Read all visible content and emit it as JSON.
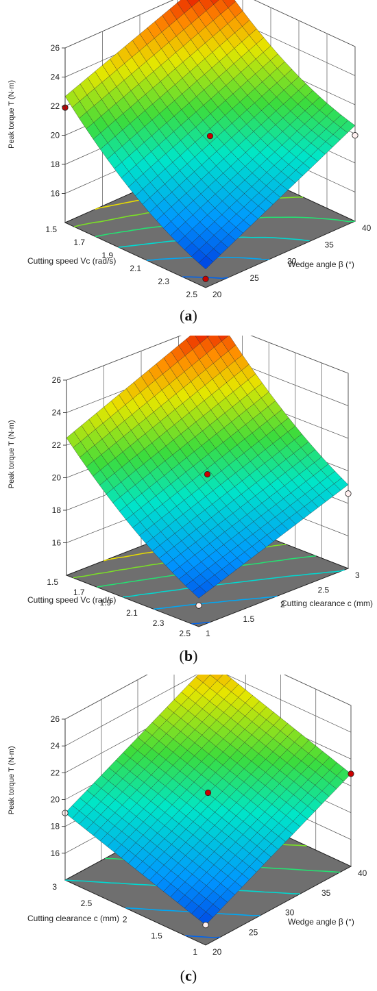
{
  "captions": [
    "(a)",
    "(b)",
    "(c)"
  ],
  "chart_data": [
    {
      "type": "surface3d",
      "zlabel": "Peak torque T (N·m)",
      "left_axis_label": "Cutting speed Vc (rad/s)",
      "right_axis_label": "Wedge angle β (°)",
      "left_ticks": [
        "1.5",
        "1.7",
        "1.9",
        "2.1",
        "2.3",
        "2.5"
      ],
      "right_ticks": [
        "20",
        "25",
        "30",
        "35",
        "40"
      ],
      "z_ticks": [
        "16",
        "18",
        "20",
        "22",
        "24",
        "26"
      ],
      "zlim": [
        14,
        26
      ],
      "corner_values": {
        "left_min_right_min": 22.0,
        "left_min_right_max": 26.0,
        "left_max_right_min": 14.6,
        "left_max_right_max": 19.9
      },
      "curvature": 0.9,
      "design_points": [
        {
          "left": 1.5,
          "right": 20,
          "z": 21.9,
          "color": "red"
        },
        {
          "left": 1.5,
          "right": 40,
          "z": 26.0,
          "color": "red"
        },
        {
          "left": 2.5,
          "right": 20,
          "z": 14.6,
          "color": "red"
        },
        {
          "left": 2.5,
          "right": 40,
          "z": 19.9,
          "color": "white"
        },
        {
          "left": 2.0,
          "right": 30,
          "z": 19.9,
          "color": "red"
        }
      ]
    },
    {
      "type": "surface3d",
      "zlabel": "Peak torque T (N·m)",
      "left_axis_label": "Cutting speed Vc (rad/s)",
      "right_axis_label": "Cutting clearance c (mm)",
      "left_ticks": [
        "1.5",
        "1.7",
        "1.9",
        "2.1",
        "2.3",
        "2.5"
      ],
      "right_ticks": [
        "1",
        "1.5",
        "2",
        "2.5",
        "3"
      ],
      "z_ticks": [
        "16",
        "18",
        "20",
        "22",
        "24",
        "26"
      ],
      "zlim": [
        14,
        26
      ],
      "corner_values": {
        "left_min_right_min": 22.0,
        "left_min_right_max": 26.0,
        "left_max_right_min": 15.3,
        "left_max_right_max": 18.7
      },
      "curvature": 0.6,
      "design_points": [
        {
          "left": 1.5,
          "right": 3,
          "z": 25.9,
          "color": "red"
        },
        {
          "left": 2.5,
          "right": 3,
          "z": 18.6,
          "color": "white"
        },
        {
          "left": 2.5,
          "right": 1,
          "z": 15.3,
          "color": "white"
        },
        {
          "left": 2.0,
          "right": 2,
          "z": 20.0,
          "color": "red"
        }
      ]
    },
    {
      "type": "surface3d",
      "zlabel": "Peak torque T (N·m)",
      "left_axis_label": "Cutting clearance c (mm)",
      "right_axis_label": "Wedge angle β (°)",
      "left_ticks": [
        "3",
        "2.5",
        "2",
        "1.5",
        "1"
      ],
      "right_ticks": [
        "20",
        "25",
        "30",
        "35",
        "40"
      ],
      "z_ticks": [
        "16",
        "18",
        "20",
        "22",
        "24",
        "26"
      ],
      "zlim": [
        14,
        26
      ],
      "corner_values": {
        "left_min_right_min": 19.0,
        "left_min_right_max": 24.4,
        "left_max_right_min": 15.5,
        "left_max_right_max": 20.9
      },
      "curvature": 0.0,
      "design_points": [
        {
          "left": 3,
          "right": 20,
          "z": 19.0,
          "color": "white"
        },
        {
          "left": 3,
          "right": 40,
          "z": 24.4,
          "color": "red"
        },
        {
          "left": 1,
          "right": 20,
          "z": 15.5,
          "color": "white"
        },
        {
          "left": 1,
          "right": 40,
          "z": 20.9,
          "color": "red"
        },
        {
          "left": 2,
          "right": 30,
          "z": 20.0,
          "color": "red"
        }
      ]
    }
  ]
}
